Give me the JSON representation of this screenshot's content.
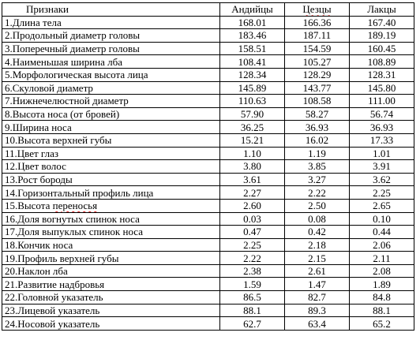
{
  "table": {
    "headers": [
      "Признаки",
      "Андийцы",
      "Цезцы",
      "Лакцы"
    ],
    "rows": [
      {
        "name": "1.Длина тела",
        "values": [
          "168.01",
          "166.36",
          "167.40"
        ]
      },
      {
        "name": "2.Продольный диаметр головы",
        "values": [
          "183.46",
          "187.11",
          "189.19"
        ]
      },
      {
        "name": "3.Поперечный диаметр головы",
        "values": [
          "158.51",
          "154.59",
          "160.45"
        ]
      },
      {
        "name": "4.Наименьшая ширина лба",
        "values": [
          "108.41",
          "105.27",
          "108.89"
        ]
      },
      {
        "name": "5.Морфологическая высота лица",
        "values": [
          "128.34",
          "128.29",
          "128.31"
        ]
      },
      {
        "name": "6.Скуловой диаметр",
        "values": [
          "145.89",
          "143.77",
          "145.80"
        ]
      },
      {
        "name": "7.Нижнечелюстной диаметр",
        "values": [
          "110.63",
          "108.58",
          "111.00"
        ]
      },
      {
        "name": "8.Высота носа (от бровей)",
        "values": [
          "57.90",
          "58.27",
          "56.74"
        ]
      },
      {
        "name": "9.Ширина носа",
        "values": [
          "36.25",
          "36.93",
          "36.93"
        ]
      },
      {
        "name": "10.Высота верхней губы",
        "values": [
          "15.21",
          "16.02",
          "17.33"
        ]
      },
      {
        "name": "11.Цвет глаз",
        "values": [
          "1.10",
          "1.19",
          "1.01"
        ]
      },
      {
        "name": "12.Цвет волос",
        "values": [
          "3.80",
          "3.85",
          "3.91"
        ]
      },
      {
        "name": "13.Рост бороды",
        "values": [
          "3.61",
          "3.27",
          "3.62"
        ]
      },
      {
        "name": "14.Горизонтальный профиль лица",
        "values": [
          "2.27",
          "2.22",
          "2.25"
        ]
      },
      {
        "name": "15.Высота переносья",
        "values": [
          "2.60",
          "2.50",
          "2.65"
        ]
      },
      {
        "name": "16.Доля вогнутых спинок носа",
        "values": [
          "0.03",
          "0.08",
          "0.10"
        ]
      },
      {
        "name": "17.Доля выпуклых спинок носа",
        "values": [
          "0.47",
          "0.42",
          "0.44"
        ]
      },
      {
        "name": "18.Кончик носа",
        "values": [
          "2.25",
          "2.18",
          "2.06"
        ]
      },
      {
        "name": "19.Профиль верхней губы",
        "values": [
          "2.22",
          "2.15",
          "2.11"
        ]
      },
      {
        "name": "20.Наклон лба",
        "values": [
          "2.38",
          "2.61",
          "2.08"
        ]
      },
      {
        "name": "21.Развитие надбровья",
        "values": [
          "1.59",
          "1.47",
          "1.89"
        ]
      },
      {
        "name": "22.Головной указатель",
        "values": [
          "86.5",
          "82.7",
          "84.8"
        ]
      },
      {
        "name": "23.Лицевой указатель",
        "values": [
          "88.1",
          "89.3",
          "88.1"
        ]
      },
      {
        "name": "24.Носовой указатель",
        "values": [
          "62.7",
          "63.4",
          "65.2"
        ]
      }
    ]
  }
}
